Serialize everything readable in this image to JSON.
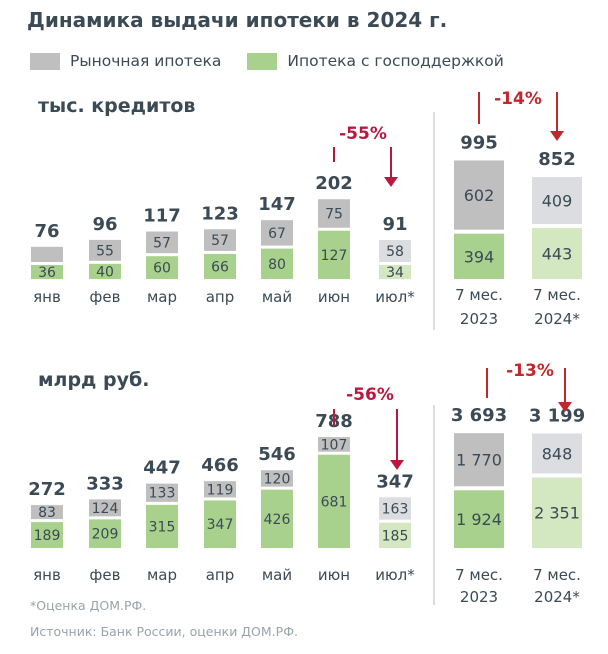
{
  "title": "Динамика выдачи ипотеки в 2024 г.",
  "legend": [
    {
      "label": "Рыночная ипотека",
      "color": "#bfbfbf"
    },
    {
      "label": "Ипотека с господдержкой",
      "color": "#a9d18e"
    }
  ],
  "colors": {
    "market": "#bfbfbf",
    "market_estimate": "#dcdde0",
    "state": "#a9d18e",
    "state_estimate": "#d3e8c0",
    "change": "#b8183f",
    "text": "#3b4a55"
  },
  "chart_data": [
    {
      "type": "bar",
      "stacked": true,
      "title": "тыс. кредитов",
      "categories": [
        "янв",
        "фев",
        "мар",
        "апр",
        "май",
        "июн",
        "июл*"
      ],
      "totals": [
        "76",
        "96",
        "117",
        "123",
        "147",
        "202",
        "91"
      ],
      "series": [
        {
          "name": "Ипотека с господдержкой",
          "values": [
            36,
            40,
            60,
            66,
            80,
            127,
            34
          ],
          "labels": [
            "36",
            "40",
            "60",
            "66",
            "80",
            "127",
            "34"
          ]
        },
        {
          "name": "Рыночная ипотека",
          "values": [
            40,
            55,
            57,
            57,
            67,
            75,
            58
          ],
          "labels": [
            "",
            "55",
            "57",
            "57",
            "67",
            "75",
            "58"
          ]
        }
      ],
      "estimate_categories": [
        "июл*"
      ],
      "change": {
        "label": "-55%",
        "from": "июн",
        "to": "июл*"
      },
      "ytd": {
        "categories": [
          [
            "7 мес.",
            "2023"
          ],
          [
            "7 мес.",
            "2024*"
          ]
        ],
        "totals": [
          "995",
          "852"
        ],
        "state": [
          394,
          443
        ],
        "state_labels": [
          "394",
          "443"
        ],
        "market": [
          602,
          409
        ],
        "market_labels": [
          "602",
          "409"
        ],
        "change": "-14%"
      }
    },
    {
      "type": "bar",
      "stacked": true,
      "title": "млрд руб.",
      "categories": [
        "янв",
        "фев",
        "мар",
        "апр",
        "май",
        "июн",
        "июл*"
      ],
      "totals": [
        "272",
        "333",
        "447",
        "466",
        "546",
        "788",
        "347"
      ],
      "series": [
        {
          "name": "Ипотека с господдержкой",
          "values": [
            189,
            209,
            315,
            347,
            426,
            681,
            185
          ],
          "labels": [
            "189",
            "209",
            "315",
            "347",
            "426",
            "681",
            "185"
          ]
        },
        {
          "name": "Рыночная ипотека",
          "values": [
            83,
            124,
            133,
            119,
            120,
            107,
            163
          ],
          "labels": [
            "83",
            "124",
            "133",
            "119",
            "120",
            "107",
            "163"
          ]
        }
      ],
      "estimate_categories": [
        "июл*"
      ],
      "change": {
        "label": "-56%",
        "from": "июн",
        "to": "июл*"
      },
      "ytd": {
        "categories": [
          [
            "7 мес.",
            "2023"
          ],
          [
            "7 мес.",
            "2024*"
          ]
        ],
        "totals": [
          "3 693",
          "3 199"
        ],
        "state": [
          1924,
          2351
        ],
        "state_labels": [
          "1 924",
          "2 351"
        ],
        "market": [
          1770,
          848
        ],
        "market_labels": [
          "1 770",
          "848"
        ],
        "change": "-13%"
      }
    }
  ],
  "footnotes": [
    "*Оценка ДОМ.РФ.",
    "Источник: Банк России, оценки ДОМ.РФ."
  ]
}
